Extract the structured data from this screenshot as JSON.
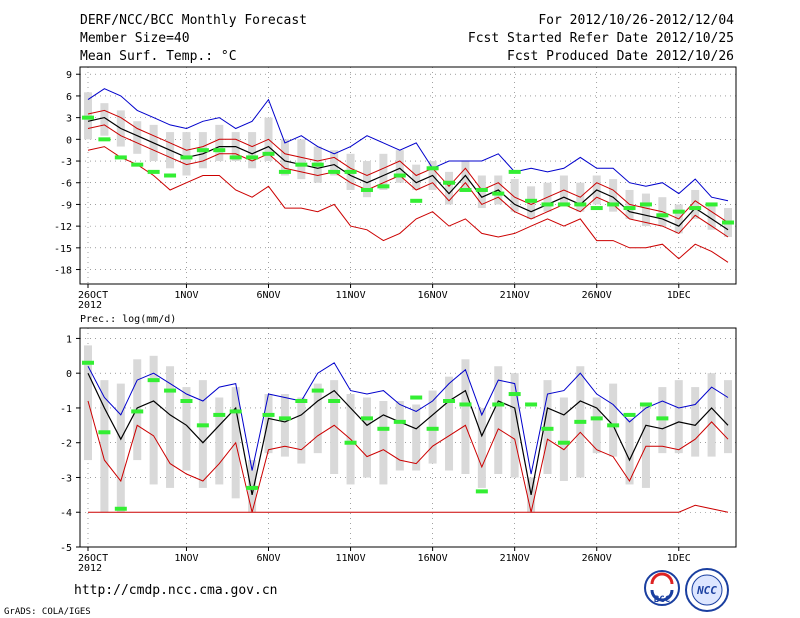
{
  "header": {
    "title": "DERF/NCC/BCC Monthly Forecast",
    "member_size": "Member Size=40",
    "variable": "Mean Surf. Temp.: °C",
    "period": "For 2012/10/26-2012/12/04",
    "fcst_started": "Fcst Started Refer Date 2012/10/25",
    "fcst_produced": "Fcst Produced Date 2012/10/26"
  },
  "footer": {
    "url": "http://cmdp.ncc.cma.gov.cn",
    "grads": "GrADS: COLA/IGES",
    "logo_left": "BCC",
    "logo_right": "NCC"
  },
  "colors": {
    "box": "#d9d9d9",
    "mean": "#000000",
    "upper": "#0000cc",
    "lower": "#cc0000",
    "observed": "#33ee33",
    "frame": "#000000"
  },
  "chart_data": [
    {
      "type": "line",
      "title": "Mean Surf. Temp.: °C",
      "ylim": [
        -20,
        10
      ],
      "yticks": [
        9,
        6,
        3,
        0,
        -3,
        -6,
        -9,
        -12,
        -15,
        -18
      ],
      "xticks": [
        {
          "day": 0,
          "label": "26OCT"
        },
        {
          "day": 6,
          "label": "1NOV"
        },
        {
          "day": 11,
          "label": "6NOV"
        },
        {
          "day": 16,
          "label": "11NOV"
        },
        {
          "day": 21,
          "label": "16NOV"
        },
        {
          "day": 26,
          "label": "21NOV"
        },
        {
          "day": 31,
          "label": "26NOV"
        },
        {
          "day": 36,
          "label": "1DEC"
        }
      ],
      "year_label": "2012",
      "ndays": 40,
      "series": [
        {
          "name": "mean",
          "values": [
            2.5,
            3,
            1.5,
            0.5,
            -0.5,
            -1.5,
            -2.5,
            -2,
            -1,
            -1,
            -2,
            -1,
            -3,
            -3.5,
            -4,
            -3.5,
            -5,
            -6,
            -5,
            -4,
            -6,
            -5,
            -7.5,
            -5,
            -8,
            -7,
            -9,
            -10,
            -9,
            -8,
            -9,
            -7,
            -8,
            -10,
            -10.5,
            -11,
            -12,
            -9.5,
            -11,
            -12.5
          ]
        },
        {
          "name": "upper",
          "values": [
            5.5,
            7,
            6,
            4,
            3,
            2,
            1.5,
            2.5,
            3,
            1.5,
            2.5,
            5.5,
            -0.5,
            0.5,
            -1,
            -2,
            -1,
            0.5,
            -0.5,
            -1.5,
            -0.5,
            -4,
            -3,
            -3,
            -3,
            -2,
            -4.5,
            -4,
            -4.5,
            -4,
            -2.5,
            -4,
            -4,
            -6,
            -6.5,
            -6,
            -7.5,
            -5.5,
            -8,
            -8.5
          ]
        },
        {
          "name": "lower",
          "values": [
            -1.5,
            -1,
            -2.5,
            -3.5,
            -5,
            -7,
            -6,
            -5,
            -5,
            -7,
            -8,
            -6.5,
            -9.5,
            -9.5,
            -10,
            -9,
            -12,
            -12.5,
            -14,
            -13,
            -11,
            -10,
            -12,
            -11,
            -13,
            -13.5,
            -13,
            -12,
            -11,
            -12,
            -11,
            -14,
            -14,
            -15,
            -15,
            -14.5,
            -16.5,
            -14.5,
            -15.5,
            -17
          ]
        },
        {
          "name": "upper_inner",
          "values": [
            3.5,
            4,
            3,
            1.5,
            0.5,
            -0.5,
            -1.5,
            -1,
            0,
            0,
            -1,
            0,
            -2,
            -2.5,
            -3,
            -2.5,
            -4,
            -5,
            -4,
            -3,
            -5,
            -4,
            -6.5,
            -4,
            -7,
            -6,
            -8,
            -9,
            -8,
            -7,
            -8,
            -6,
            -7,
            -9,
            -9.5,
            -10,
            -11,
            -8.5,
            -10,
            -11.5
          ]
        },
        {
          "name": "lower_inner",
          "values": [
            1.5,
            2,
            0.5,
            -0.5,
            -1.5,
            -2.5,
            -3.5,
            -3,
            -2,
            -2,
            -3,
            -2,
            -4,
            -4.5,
            -5,
            -4.5,
            -6,
            -7,
            -6,
            -5,
            -7,
            -6,
            -8.5,
            -6,
            -9,
            -8,
            -10,
            -11,
            -10,
            -9,
            -10,
            -8,
            -9,
            -11,
            -11.5,
            -12,
            -13,
            -10.5,
            -12,
            -13.5
          ]
        },
        {
          "name": "box_low",
          "values": [
            0,
            0.5,
            -1,
            -2,
            -3,
            -4,
            -5,
            -4,
            -3,
            -3,
            -4,
            -3,
            -5,
            -5.5,
            -6,
            -5,
            -7,
            -8,
            -7,
            -6,
            -7,
            -7,
            -9,
            -7,
            -9.5,
            -9,
            -10,
            -11,
            -10,
            -9,
            -10,
            -9,
            -10,
            -11,
            -12,
            -12,
            -13,
            -11,
            -12.5,
            -13.5
          ]
        },
        {
          "name": "box_high",
          "values": [
            6.5,
            5,
            4,
            2.5,
            2,
            1,
            1,
            1,
            2,
            1,
            1,
            3,
            0,
            0,
            -1,
            -1.5,
            -2,
            -3,
            -2,
            -1.5,
            -3.5,
            -3,
            -4.5,
            -3,
            -5,
            -5,
            -5.5,
            -6.5,
            -6,
            -5,
            -6,
            -5,
            -5.5,
            -7,
            -7.5,
            -8,
            -9,
            -7,
            -9,
            -9.5
          ]
        },
        {
          "name": "observed",
          "values": [
            3,
            0,
            -2.5,
            -3.5,
            -4.5,
            -5,
            -2.5,
            -1.5,
            -1.5,
            -2.5,
            -2.5,
            -2,
            -4.5,
            -3.5,
            -3.5,
            -4.5,
            -4.5,
            -7,
            -6.5,
            -5,
            -8.5,
            -4,
            -6,
            -7,
            -7,
            -7.5,
            -4.5,
            -8.5,
            -9,
            -9,
            -9,
            -9.5,
            -9,
            -9.5,
            -9,
            -10.5,
            -10,
            -9.5,
            -9,
            -11.5
          ]
        }
      ]
    },
    {
      "type": "line",
      "title": "Prec.: log(mm/d)",
      "ylim": [
        -5,
        1.3
      ],
      "yticks": [
        1,
        0,
        -1,
        -2,
        -3,
        -4,
        -5
      ],
      "xticks": [
        {
          "day": 0,
          "label": "26OCT"
        },
        {
          "day": 6,
          "label": "1NOV"
        },
        {
          "day": 11,
          "label": "6NOV"
        },
        {
          "day": 16,
          "label": "11NOV"
        },
        {
          "day": 21,
          "label": "16NOV"
        },
        {
          "day": 26,
          "label": "21NOV"
        },
        {
          "day": 31,
          "label": "26NOV"
        },
        {
          "day": 36,
          "label": "1DEC"
        }
      ],
      "year_label": "2012",
      "ndays": 40,
      "series": [
        {
          "name": "mean",
          "values": [
            0,
            -1,
            -1.9,
            -1,
            -0.8,
            -1.2,
            -1.5,
            -2,
            -1.5,
            -1,
            -3.5,
            -1.3,
            -1.4,
            -1.2,
            -0.8,
            -0.5,
            -1,
            -1.5,
            -1.2,
            -1.4,
            -1.6,
            -1.2,
            -0.8,
            -0.5,
            -1.8,
            -0.8,
            -1,
            -3.5,
            -1,
            -1.2,
            -0.8,
            -1,
            -1.5,
            -2.5,
            -1.5,
            -1.6,
            -1.4,
            -1.5,
            -1,
            -1.5
          ]
        },
        {
          "name": "upper",
          "values": [
            0.2,
            -0.7,
            -1.2,
            -0.2,
            0,
            -0.3,
            -0.6,
            -0.8,
            -0.4,
            -0.3,
            -2.8,
            -0.6,
            -0.7,
            -0.8,
            0,
            0.3,
            -0.5,
            -0.6,
            -0.5,
            -0.9,
            -1.1,
            -0.8,
            -0.3,
            0.1,
            -1.2,
            -0.2,
            -0.3,
            -2.9,
            -0.6,
            -0.5,
            0,
            -0.6,
            -0.9,
            -1.4,
            -1,
            -0.8,
            -1,
            -0.9,
            -0.4,
            -0.7
          ]
        },
        {
          "name": "lower",
          "values": [
            -0.8,
            -2.5,
            -3.1,
            -1.5,
            -1.8,
            -2.6,
            -2.9,
            -3.1,
            -2.6,
            -2,
            -4,
            -2.2,
            -2.1,
            -2.2,
            -1.8,
            -1.5,
            -1.9,
            -2.4,
            -2.2,
            -2.5,
            -2.6,
            -2.1,
            -1.8,
            -1.5,
            -2.7,
            -1.6,
            -1.9,
            -4,
            -1.9,
            -2.2,
            -1.7,
            -2.2,
            -2.4,
            -3.1,
            -2.1,
            -2.1,
            -2.2,
            -1.9,
            -1.4,
            -1.9
          ]
        },
        {
          "name": "box_low",
          "values": [
            -2.5,
            -4,
            -4,
            -2.5,
            -3.2,
            -3.3,
            -2.8,
            -3.3,
            -3.2,
            -3.6,
            -4,
            -2.3,
            -2.4,
            -2.6,
            -2.3,
            -2.9,
            -3.2,
            -3,
            -3.2,
            -2.8,
            -2.8,
            -2.6,
            -2.8,
            -2.9,
            -3.3,
            -2.9,
            -3,
            -4,
            -2.9,
            -3.1,
            -3,
            -2.3,
            -2.4,
            -3.2,
            -3.3,
            -2.3,
            -2.3,
            -2.4,
            -2.4,
            -2.3
          ]
        },
        {
          "name": "box_high",
          "values": [
            0.8,
            -0.2,
            -0.3,
            0.4,
            0.5,
            0.2,
            -0.4,
            -0.2,
            -0.7,
            -0.4,
            -2.5,
            -0.6,
            -0.6,
            -0.7,
            -0.3,
            -0.2,
            -0.6,
            -0.7,
            -0.8,
            -0.8,
            -0.9,
            -0.5,
            -0.1,
            0.4,
            -1,
            0.2,
            0,
            -3,
            -0.2,
            -0.7,
            0.2,
            -0.7,
            -0.3,
            -1.3,
            -0.9,
            -0.4,
            -0.2,
            -0.4,
            0,
            -0.2
          ]
        },
        {
          "name": "observed",
          "values": [
            0.3,
            -1.7,
            -3.9,
            -1.1,
            -0.2,
            -0.5,
            -0.8,
            -1.5,
            -1.2,
            -1.1,
            -3.3,
            -1.2,
            -1.3,
            -0.8,
            -0.5,
            -0.8,
            -2,
            -1.3,
            -1.6,
            -1.4,
            -0.7,
            -1.6,
            -0.8,
            -0.9,
            -3.4,
            -0.9,
            -0.6,
            -0.9,
            -1.6,
            -2,
            -1.4,
            -1.3,
            -1.5,
            -1.2,
            -0.9,
            -1.3
          ]
        },
        {
          "name": "floor",
          "values": [
            -4,
            -4,
            -4,
            -4,
            -4,
            -4,
            -4,
            -4,
            -4,
            -4,
            -4,
            -4,
            -4,
            -4,
            -4,
            -4,
            -4,
            -4,
            -4,
            -4,
            -4,
            -4,
            -4,
            -4,
            -4,
            -4,
            -4,
            -4,
            -4,
            -4,
            -4,
            -4,
            -4,
            -4,
            -4,
            -4,
            -4,
            -3.8,
            -3.9,
            -4
          ]
        }
      ],
      "y_labels": [
        "1",
        "0",
        "-1",
        "-2",
        "-3",
        "-4",
        "-5"
      ]
    }
  ]
}
